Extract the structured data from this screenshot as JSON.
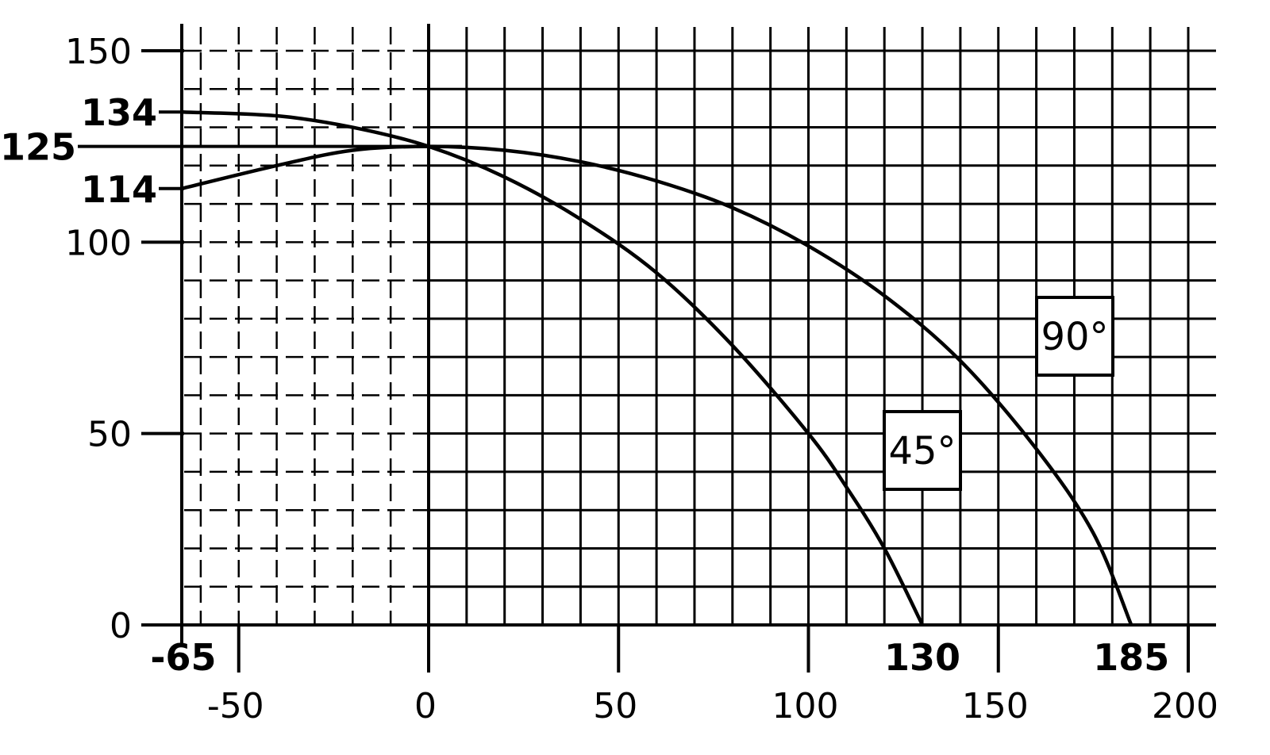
{
  "chart_data": {
    "type": "line",
    "title": "",
    "xlabel": "",
    "ylabel": "",
    "xlim": [
      -65,
      200
    ],
    "ylim": [
      0,
      150
    ],
    "grid": true,
    "grid_dashed_region_x": [
      -65,
      0
    ],
    "x_ticks_lower": [
      -50,
      0,
      50,
      100,
      150,
      200
    ],
    "x_ticks_upper": [
      -65,
      130,
      185
    ],
    "y_ticks_left": [
      0,
      50,
      100,
      150
    ],
    "y_ticks_callout": [
      114,
      125,
      134
    ],
    "series": [
      {
        "name": "45°",
        "x": [
          -65,
          -40,
          -20,
          0,
          20,
          40,
          60,
          80,
          100,
          110,
          120,
          130
        ],
        "y": [
          134,
          133,
          130,
          125,
          117,
          106,
          92,
          73,
          50,
          36,
          20,
          0
        ]
      },
      {
        "name": "90°",
        "x": [
          -65,
          -40,
          -20,
          0,
          20,
          40,
          60,
          80,
          100,
          120,
          140,
          160,
          175,
          185
        ],
        "y": [
          114,
          120,
          124,
          125,
          124,
          121,
          116,
          109,
          99,
          86,
          69,
          46,
          24,
          0
        ]
      }
    ]
  }
}
